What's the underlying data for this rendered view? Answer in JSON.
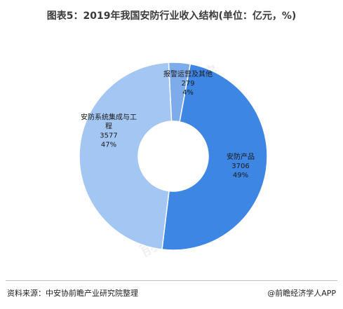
{
  "chart_data": {
    "type": "pie",
    "title": "图表5：2019年我国安防行业收入结构(单位：亿元，%)",
    "slices": [
      {
        "label": "安防产品",
        "value": 3706,
        "percent": "49%",
        "color": "#3e86e4"
      },
      {
        "label_lines": [
          "安防系统集成与工",
          "程"
        ],
        "value": 3577,
        "percent": "47%",
        "color": "#a4c6f2"
      },
      {
        "label": "报警运营及其他",
        "value": 279,
        "percent": "4%",
        "color": "#7eabe9"
      }
    ]
  },
  "footer": {
    "source": "资料来源：中安协前瞻产业研究院整理",
    "brand": "@前瞻经济学人APP"
  },
  "watermark": "前瞻产业研究院"
}
